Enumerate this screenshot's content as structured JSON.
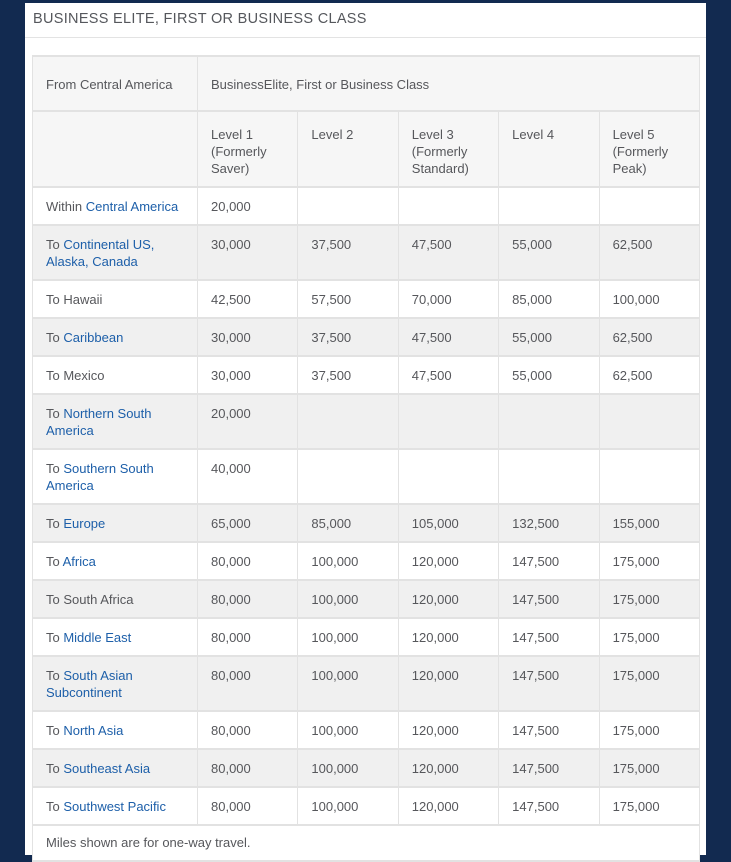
{
  "page": {
    "title": "BUSINESS ELITE, FIRST OR BUSINESS CLASS",
    "footnote": "Miles shown are for one-way travel."
  },
  "colors": {
    "background": "#122a50",
    "link_blue": "#1d5fa9",
    "text_gray": "#56575b",
    "stripe_gray": "#f0f0f0",
    "header_gray": "#f6f6f6",
    "border_gray": "#e2e2e2"
  },
  "table": {
    "from_header": "From Central America",
    "class_header": "BusinessElite, First or Business Class",
    "level_headers": [
      "Level 1 (Formerly Saver)",
      "Level 2",
      "Level 3 (Formerly Standard)",
      "Level 4",
      "Level 5 (Formerly Peak)"
    ],
    "rows": [
      {
        "prefix": "Within ",
        "destination": "Central America",
        "link": true,
        "values": [
          "20,000",
          "",
          "",
          "",
          ""
        ]
      },
      {
        "prefix": "To ",
        "destination": "Continental US, Alaska, Canada",
        "link": true,
        "values": [
          "30,000",
          "37,500",
          "47,500",
          "55,000",
          "62,500"
        ]
      },
      {
        "prefix": "To ",
        "destination": "Hawaii",
        "link": false,
        "values": [
          "42,500",
          "57,500",
          "70,000",
          "85,000",
          "100,000"
        ]
      },
      {
        "prefix": "To ",
        "destination": "Caribbean",
        "link": true,
        "values": [
          "30,000",
          "37,500",
          "47,500",
          "55,000",
          "62,500"
        ]
      },
      {
        "prefix": "To ",
        "destination": "Mexico",
        "link": false,
        "values": [
          "30,000",
          "37,500",
          "47,500",
          "55,000",
          "62,500"
        ]
      },
      {
        "prefix": "To ",
        "destination": "Northern South America",
        "link": true,
        "values": [
          "20,000",
          "",
          "",
          "",
          ""
        ]
      },
      {
        "prefix": "To ",
        "destination": "Southern South America",
        "link": true,
        "values": [
          "40,000",
          "",
          "",
          "",
          ""
        ]
      },
      {
        "prefix": "To ",
        "destination": "Europe",
        "link": true,
        "values": [
          "65,000",
          "85,000",
          "105,000",
          "132,500",
          "155,000"
        ]
      },
      {
        "prefix": "To ",
        "destination": "Africa",
        "link": true,
        "values": [
          "80,000",
          "100,000",
          "120,000",
          "147,500",
          "175,000"
        ]
      },
      {
        "prefix": "To ",
        "destination": "South Africa",
        "link": false,
        "values": [
          "80,000",
          "100,000",
          "120,000",
          "147,500",
          "175,000"
        ]
      },
      {
        "prefix": "To ",
        "destination": "Middle East",
        "link": true,
        "values": [
          "80,000",
          "100,000",
          "120,000",
          "147,500",
          "175,000"
        ]
      },
      {
        "prefix": "To ",
        "destination": "South Asian Subcontinent",
        "link": true,
        "values": [
          "80,000",
          "100,000",
          "120,000",
          "147,500",
          "175,000"
        ]
      },
      {
        "prefix": "To ",
        "destination": "North Asia",
        "link": true,
        "values": [
          "80,000",
          "100,000",
          "120,000",
          "147,500",
          "175,000"
        ]
      },
      {
        "prefix": "To ",
        "destination": "Southeast Asia",
        "link": true,
        "values": [
          "80,000",
          "100,000",
          "120,000",
          "147,500",
          "175,000"
        ]
      },
      {
        "prefix": "To ",
        "destination": "Southwest Pacific",
        "link": true,
        "values": [
          "80,000",
          "100,000",
          "120,000",
          "147,500",
          "175,000"
        ]
      }
    ]
  }
}
